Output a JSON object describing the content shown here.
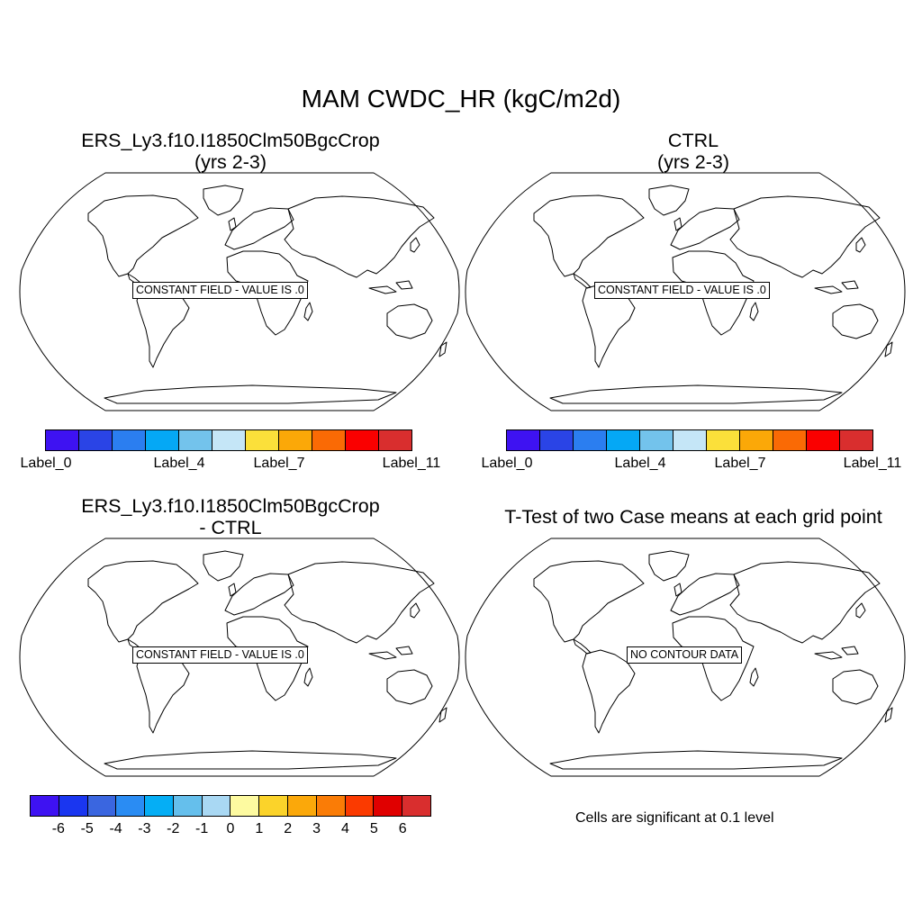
{
  "title": "MAM CWDC_HR (kgC/m2d)",
  "panels": {
    "top_left": {
      "title_line1": "ERS_Ly3.f10.I1850Clm50BgcCrop",
      "title_line2": "(yrs 2-3)",
      "notice": "CONSTANT FIELD - VALUE IS .0"
    },
    "top_right": {
      "title_line1": "CTRL",
      "title_line2": "(yrs 2-3)",
      "notice": "CONSTANT FIELD - VALUE IS .0"
    },
    "bottom_left": {
      "title_line1": "ERS_Ly3.f10.I1850Clm50BgcCrop",
      "title_line2": "- CTRL",
      "notice": "CONSTANT FIELD - VALUE IS .0"
    },
    "bottom_right": {
      "title_line1": "T-Test of two Case means at each grid point",
      "notice": "NO CONTOUR DATA"
    }
  },
  "colorbar_cases": {
    "colors": [
      "#3e12f2",
      "#2a44e6",
      "#2b7ef0",
      "#05a8f5",
      "#73c3ec",
      "#c5e6f7",
      "#fbe03a",
      "#fba808",
      "#fa6a05",
      "#fa0000",
      "#d92e2e"
    ],
    "labels": [
      "Label_0",
      "Label_4",
      "Label_7",
      "Label_11"
    ]
  },
  "colorbar_diff": {
    "colors": [
      "#3e12f2",
      "#1a36f0",
      "#3a66e0",
      "#2a8cf3",
      "#05aef5",
      "#65bfec",
      "#a9d8f3",
      "#fdfaa0",
      "#fbd32a",
      "#fba80a",
      "#fa7c06",
      "#fb3a00",
      "#e00000",
      "#d92e2e"
    ],
    "labels": [
      "-6",
      "-5",
      "-4",
      "-3",
      "-2",
      "-1",
      "0",
      "1",
      "2",
      "3",
      "4",
      "5",
      "6"
    ]
  },
  "significance_note": "Cells are significant at 0.1 level"
}
